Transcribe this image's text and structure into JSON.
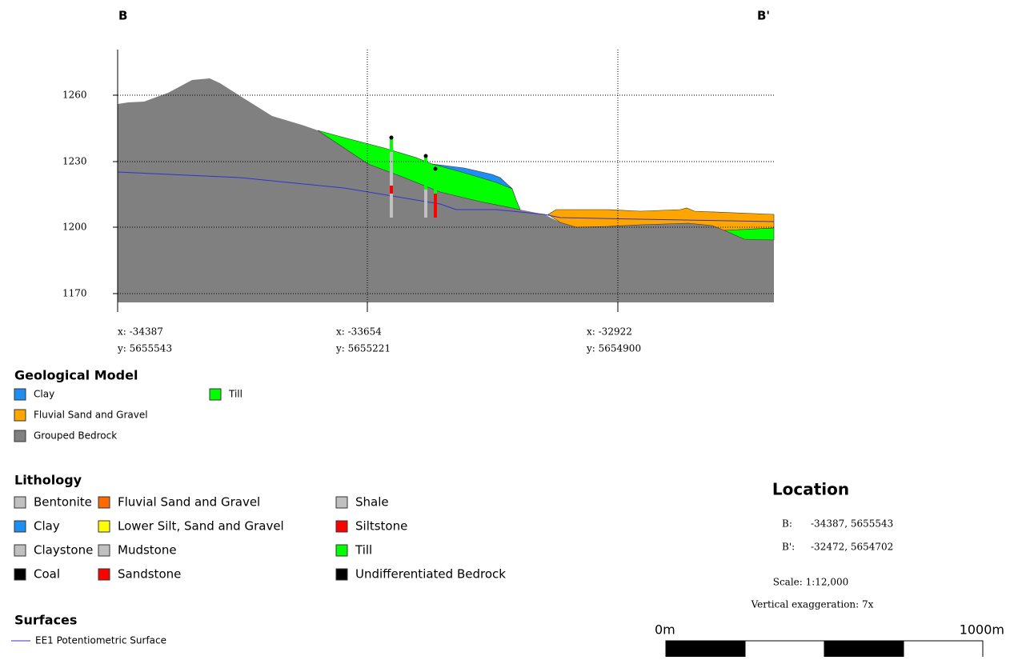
{
  "header": {
    "left": "B",
    "right": "B'"
  },
  "section": {
    "yticks": [
      "1260",
      "1230",
      "1200",
      "1170"
    ],
    "coords": [
      {
        "x": "x: -34387",
        "y": "y: 5655543"
      },
      {
        "x": "x: -33654",
        "y": "y: 5655221"
      },
      {
        "x": "x: -32922",
        "y": "y: 5654900"
      }
    ]
  },
  "geological_model": {
    "title": "Geological Model",
    "items": [
      {
        "label": "Clay",
        "color": "#1e8ff0"
      },
      {
        "label": "Fluvial Sand and Gravel",
        "color": "#ffa500"
      },
      {
        "label": "Grouped Bedrock",
        "color": "#808080"
      },
      {
        "label": "Till",
        "color": "#00ff00"
      }
    ]
  },
  "lithology": {
    "title": "Lithology",
    "items": [
      {
        "label": "Bentonite",
        "color": "#c0c0c0"
      },
      {
        "label": "Clay",
        "color": "#1e8ff0"
      },
      {
        "label": "Claystone",
        "color": "#c0c0c0"
      },
      {
        "label": "Coal",
        "color": "#000000"
      },
      {
        "label": "Fluvial Sand and Gravel",
        "color": "#ff6a00"
      },
      {
        "label": "Lower Silt, Sand and Gravel",
        "color": "#ffff00"
      },
      {
        "label": "Mudstone",
        "color": "#c0c0c0"
      },
      {
        "label": "Sandstone",
        "color": "#ff0000"
      },
      {
        "label": "Shale",
        "color": "#c0c0c0"
      },
      {
        "label": "Siltstone",
        "color": "#ff0000"
      },
      {
        "label": "Till",
        "color": "#00ff00"
      },
      {
        "label": "Undifferentiated Bedrock",
        "color": "#000000"
      }
    ]
  },
  "surfaces": {
    "title": "Surfaces",
    "items": [
      {
        "label": "EE1 Potentiometric Surface",
        "color": "#3333cc"
      }
    ]
  },
  "location": {
    "title": "Location",
    "b_label": "B:",
    "b_value": "-34387, 5655543",
    "bp_label": "B':",
    "bp_value": "-32472, 5654702",
    "scale": "Scale: 1:12,000",
    "vertical_exaggeration": "Vertical exaggeration: 7x"
  },
  "scale_bar": {
    "start": "0m",
    "end": "1000m"
  }
}
